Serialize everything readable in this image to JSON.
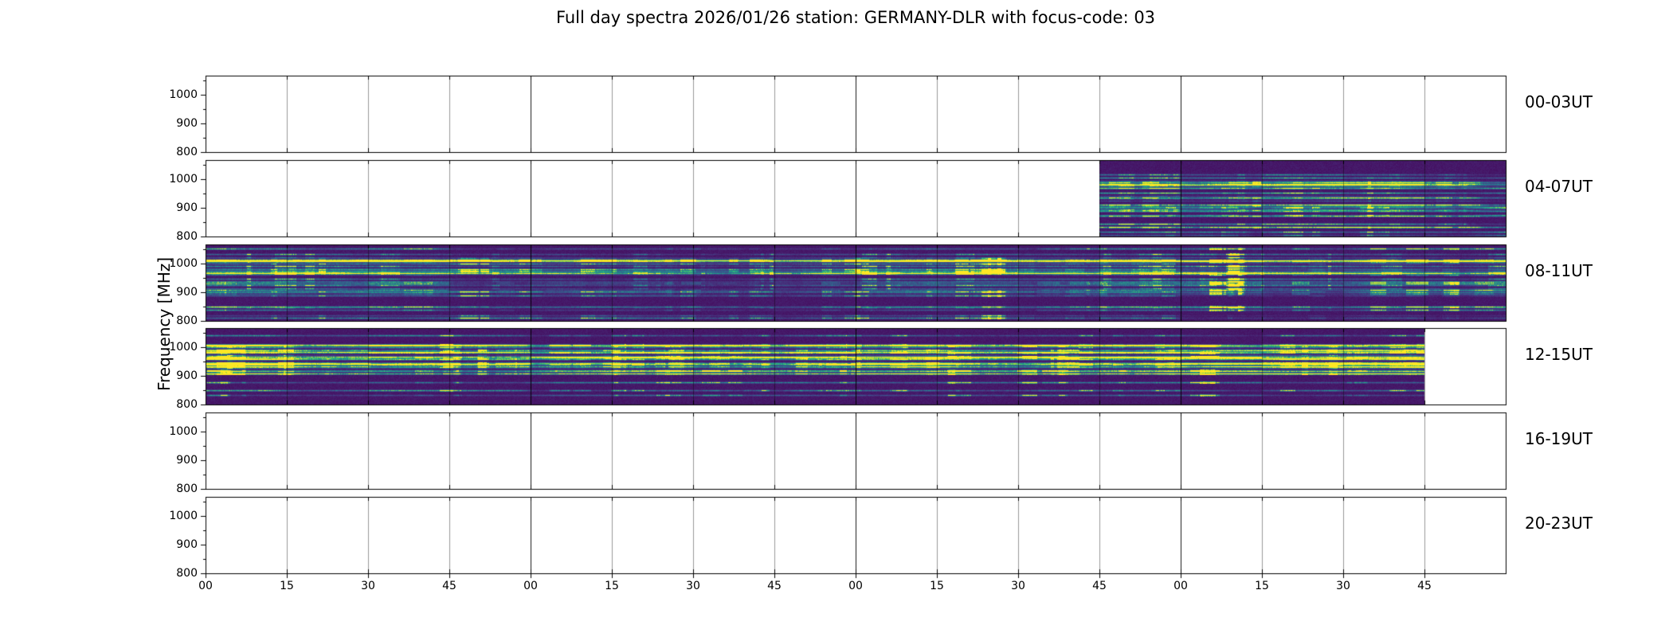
{
  "chart_data": {
    "type": "heatmap",
    "title": "Full day spectra 2026/01/26 station: GERMANY-DLR with focus-code: 03",
    "ylabel": "Frequency [MHz]",
    "colormap": "viridis",
    "y_range_mhz": [
      800,
      1067
    ],
    "yticks": [
      1000,
      900,
      800
    ],
    "y_minor_ticks": [
      1050,
      950,
      850
    ],
    "xtick_labels": [
      "00",
      "15",
      "30",
      "45",
      "00",
      "15",
      "30",
      "45",
      "00",
      "15",
      "30",
      "45",
      "00",
      "15",
      "30",
      "45"
    ],
    "slots_per_panel": 16,
    "minutes_per_slot": 15,
    "panels": [
      {
        "label": "00-03UT",
        "has_data": false,
        "segments": [],
        "relative_intensity": 0
      },
      {
        "label": "04-07UT",
        "has_data": true,
        "segments": [
          {
            "start": 0.6875,
            "end": 1.0
          }
        ],
        "relative_intensity": 1.0
      },
      {
        "label": "08-11UT",
        "has_data": true,
        "segments": [
          {
            "start": 0.0,
            "end": 1.0
          }
        ],
        "relative_intensity": 1.0
      },
      {
        "label": "12-15UT",
        "has_data": true,
        "segments": [
          {
            "start": 0.0,
            "end": 0.9375
          }
        ],
        "relative_intensity": 1.12
      },
      {
        "label": "16-19UT",
        "has_data": false,
        "segments": [],
        "relative_intensity": 0
      },
      {
        "label": "20-23UT",
        "has_data": false,
        "segments": [],
        "relative_intensity": 0
      }
    ],
    "spectrogram_colors": {
      "background": "#440154",
      "mid": "#21918c",
      "bright": "#fde725"
    }
  }
}
